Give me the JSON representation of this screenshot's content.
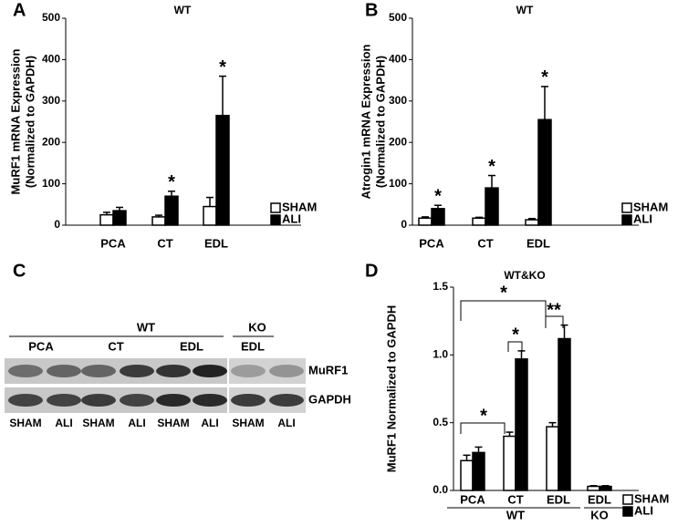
{
  "chart_data": [
    {
      "type": "bar",
      "panel_label": "A",
      "title": "WT",
      "ylabel": [
        "MuRF1 mRNA Expression",
        "(Normalized to GAPDH)"
      ],
      "categories": [
        "PCA",
        "CT",
        "EDL"
      ],
      "series": [
        {
          "name": "SHAM",
          "color": "#ffffff",
          "values": [
            25,
            20,
            45
          ],
          "errors": [
            6,
            4,
            22
          ]
        },
        {
          "name": "ALI",
          "color": "#000000",
          "values": [
            35,
            70,
            265
          ],
          "errors": [
            8,
            12,
            95
          ]
        }
      ],
      "ylim": [
        0,
        500
      ],
      "yticks": [
        0,
        100,
        200,
        300,
        400,
        500
      ],
      "legend": "lower right",
      "annotations": [
        "*",
        "*"
      ]
    },
    {
      "type": "bar",
      "panel_label": "B",
      "title": "WT",
      "ylabel": [
        "Atrogin1  mRNA Expression",
        "(Normalized to GAPDH)"
      ],
      "categories": [
        "PCA",
        "CT",
        "EDL"
      ],
      "series": [
        {
          "name": "SHAM",
          "color": "#ffffff",
          "values": [
            17,
            17,
            13
          ],
          "errors": [
            3,
            2,
            3
          ]
        },
        {
          "name": "ALI",
          "color": "#000000",
          "values": [
            40,
            90,
            255
          ],
          "errors": [
            8,
            30,
            80
          ]
        }
      ],
      "ylim": [
        0,
        500
      ],
      "yticks": [
        0,
        100,
        200,
        300,
        400,
        500
      ],
      "legend": "lower right",
      "annotations": [
        "*",
        "*",
        "*"
      ]
    },
    {
      "type": "bar",
      "panel_label": "D",
      "title": "WT&KO",
      "ylabel": [
        "MuRF1 Normalized to GAPDH"
      ],
      "categories": [
        "PCA",
        "CT",
        "EDL",
        "EDL"
      ],
      "groups": [
        "WT",
        "KO"
      ],
      "series": [
        {
          "name": "SHAM",
          "color": "#ffffff",
          "values": [
            0.22,
            0.4,
            0.47,
            0.03
          ],
          "errors": [
            0.04,
            0.03,
            0.03,
            0.005
          ]
        },
        {
          "name": "ALI",
          "color": "#000000",
          "values": [
            0.28,
            0.97,
            1.12,
            0.03
          ],
          "errors": [
            0.04,
            0.06,
            0.1,
            0.005
          ]
        }
      ],
      "ylim": [
        0,
        1.5
      ],
      "yticks": [
        {
          "value": 0,
          "label": "0.0"
        },
        0.5,
        {
          "value": 1,
          "label": "1.0"
        },
        1.5
      ],
      "legend": "lower right",
      "annotations": [
        "*",
        "*",
        "**",
        "*"
      ]
    }
  ],
  "blot": {
    "panel_label": "C",
    "groups": [
      "WT",
      "KO"
    ],
    "tissues": [
      "PCA",
      "CT",
      "EDL",
      "EDL"
    ],
    "rows": [
      "MuRF1",
      "GAPDH"
    ],
    "lanes": [
      "SHAM",
      "ALI",
      "SHAM",
      "ALI",
      "SHAM",
      "ALI",
      "SHAM",
      "ALI"
    ]
  }
}
